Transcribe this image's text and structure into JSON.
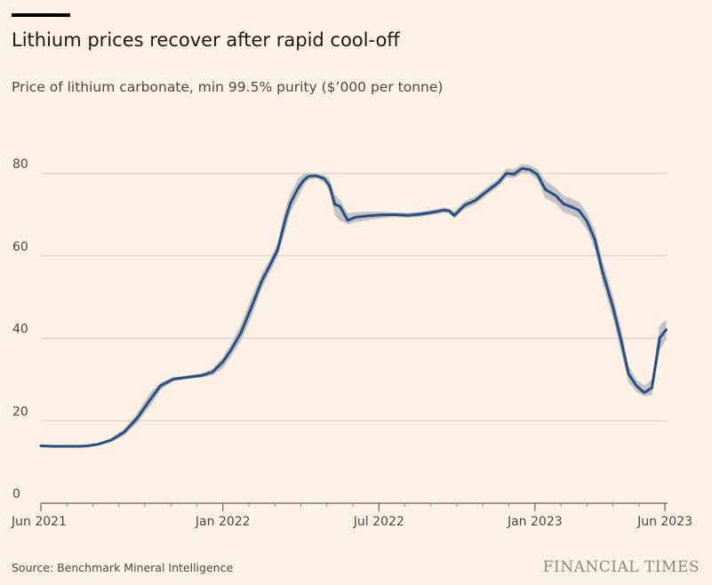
{
  "brand": "FINANCIAL TIMES",
  "source": "Source: Benchmark Mineral Intelligence",
  "colors": {
    "background": "#fdf1e5",
    "line": "#264f82",
    "band": "#b8b8bd",
    "grid": "#d8ccbf"
  },
  "chart_data": {
    "type": "line",
    "title": "Lithium prices recover after rapid cool-off",
    "subtitle": "Price of lithium carbonate, min 99.5% purity ($’000 per tonne)",
    "xlabel": "",
    "ylabel": "$’000 per tonne",
    "ylim": [
      0,
      80
    ],
    "y_ticks": [
      0,
      20,
      40,
      60,
      80
    ],
    "y_tick_labels": [
      "0",
      "20",
      "40",
      "60",
      "80"
    ],
    "x_ticks": [
      {
        "label": "Jun 2021",
        "date": "2021-06"
      },
      {
        "label": "Jan 2022",
        "date": "2022-01"
      },
      {
        "label": "Jul 2022",
        "date": "2022-07"
      },
      {
        "label": "Jan 2023",
        "date": "2023-01"
      },
      {
        "label": "Jun 2023",
        "date": "2023-06"
      }
    ],
    "x_unit": "months since Jun 2021",
    "xlim": [
      0,
      24.1
    ],
    "series": [
      {
        "name": "Lithium carbonate price",
        "x": [
          0,
          0.5,
          1,
          1.5,
          1.8,
          2.2,
          2.7,
          3.2,
          3.7,
          4.2,
          4.6,
          5.1,
          5.7,
          6.2,
          6.6,
          7.0,
          7.3,
          7.7,
          8.1,
          8.5,
          8.8,
          9.1,
          9.4,
          9.6,
          9.9,
          10.1,
          10.3,
          10.6,
          10.9,
          11.1,
          11.3,
          11.5,
          11.8,
          12.1,
          12.6,
          13.1,
          13.6,
          14.1,
          14.6,
          15.1,
          15.5,
          15.7,
          15.9,
          16.3,
          16.7,
          17.2,
          17.6,
          17.9,
          18.2,
          18.5,
          18.8,
          19.1,
          19.4,
          19.8,
          20.1,
          20.4,
          20.7,
          21.0,
          21.3,
          21.6,
          22.0,
          22.3,
          22.6,
          22.9,
          23.2,
          23.5,
          23.8,
          24.05
        ],
        "values": [
          13.9,
          13.8,
          13.8,
          13.8,
          13.9,
          14.3,
          15.3,
          17.2,
          20.6,
          25.1,
          28.5,
          30.1,
          30.6,
          31.0,
          31.8,
          34.3,
          37.0,
          41.4,
          47.6,
          54.0,
          57.6,
          61.4,
          68.8,
          72.8,
          76.5,
          78.3,
          79.3,
          79.4,
          78.7,
          77.0,
          72.5,
          72.0,
          68.6,
          69.4,
          69.7,
          69.9,
          70.0,
          69.8,
          70.1,
          70.6,
          71.1,
          70.9,
          69.8,
          72.3,
          73.4,
          75.9,
          77.8,
          80.0,
          79.8,
          81.2,
          80.9,
          79.7,
          76.1,
          74.6,
          72.6,
          71.9,
          71.0,
          68.4,
          64.0,
          56.1,
          47.5,
          39.9,
          31.4,
          28.5,
          26.8,
          28.0,
          40.1,
          42.1
        ],
        "band_high": [
          14.0,
          13.9,
          13.9,
          13.9,
          14.0,
          14.5,
          15.8,
          18.0,
          21.8,
          26.8,
          29.3,
          30.6,
          31.0,
          31.5,
          32.6,
          35.5,
          38.5,
          43.5,
          50.0,
          55.8,
          59.0,
          63.0,
          71.5,
          75.0,
          78.8,
          79.8,
          80.1,
          80.0,
          79.6,
          78.6,
          75.0,
          73.6,
          70.3,
          70.6,
          70.7,
          70.7,
          70.5,
          70.4,
          70.7,
          71.2,
          71.7,
          71.5,
          70.8,
          73.3,
          74.4,
          76.9,
          78.8,
          81.2,
          81.0,
          82.3,
          82.0,
          81.0,
          78.3,
          76.5,
          74.6,
          73.9,
          73.0,
          70.5,
          66.4,
          58.8,
          50.3,
          42.8,
          33.4,
          30.0,
          28.5,
          30.0,
          43.2,
          44.5
        ],
        "band_low": [
          13.7,
          13.7,
          13.7,
          13.7,
          13.7,
          14.0,
          14.8,
          16.4,
          19.4,
          23.6,
          27.5,
          29.6,
          30.2,
          30.5,
          31.0,
          32.8,
          35.4,
          39.4,
          45.2,
          52.2,
          55.9,
          59.8,
          66.0,
          70.6,
          74.3,
          76.9,
          78.4,
          78.8,
          77.8,
          75.5,
          70.0,
          68.5,
          67.6,
          68.2,
          68.7,
          69.1,
          69.4,
          69.2,
          69.5,
          70.0,
          70.4,
          70.3,
          69.0,
          71.3,
          72.4,
          74.9,
          76.8,
          79.0,
          78.8,
          80.1,
          79.8,
          78.4,
          74.0,
          72.7,
          70.6,
          69.9,
          69.0,
          66.3,
          61.6,
          53.4,
          44.8,
          37.0,
          29.4,
          27.0,
          26.0,
          26.2,
          37.0,
          39.8
        ]
      }
    ]
  }
}
